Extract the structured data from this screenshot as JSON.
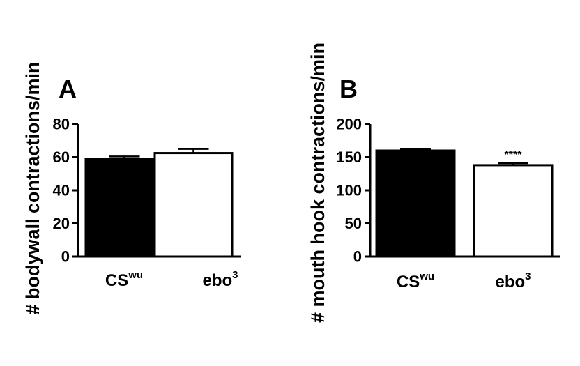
{
  "chart_data": [
    {
      "type": "bar",
      "panel": "A",
      "ylabel": "# bodywall contractions/min",
      "ylim": [
        0,
        80
      ],
      "yticks": [
        "0",
        "20",
        "40",
        "60",
        "80"
      ],
      "categories": [
        {
          "base": "CS",
          "sup": "wu"
        },
        {
          "base": "ebo",
          "sup": "3"
        }
      ],
      "values": [
        59,
        62.5
      ],
      "errors": [
        1.5,
        2.5
      ],
      "colors": [
        "#000000",
        "#ffffff"
      ],
      "significance": [
        "",
        ""
      ]
    },
    {
      "type": "bar",
      "panel": "B",
      "ylabel": "# mouth hook contractions/min",
      "ylim": [
        0,
        200
      ],
      "yticks": [
        "0",
        "50",
        "100",
        "150",
        "200"
      ],
      "categories": [
        {
          "base": "CS",
          "sup": "wu"
        },
        {
          "base": "ebo",
          "sup": "3"
        }
      ],
      "values": [
        160,
        138
      ],
      "errors": [
        2,
        3
      ],
      "colors": [
        "#000000",
        "#ffffff"
      ],
      "significance": [
        "",
        "****"
      ]
    }
  ]
}
